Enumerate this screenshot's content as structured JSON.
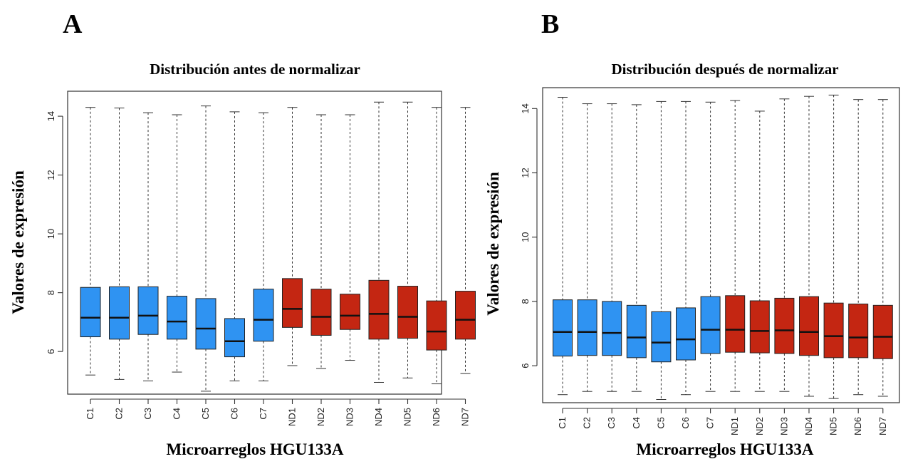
{
  "colors": {
    "control": "#2f93f2",
    "nd": "#c42612"
  },
  "chart_data": [
    {
      "type": "box",
      "panel_label": "A",
      "title": "Distribución antes de normalizar",
      "ylabel": "Valores de expresión",
      "xlabel": "Microarreglos HGU133A",
      "ylim": [
        4.55,
        14.85
      ],
      "yticks": [
        6,
        8,
        10,
        12,
        14
      ],
      "grid": false,
      "boxes": [
        {
          "label": "C1",
          "group": "control",
          "min": 5.2,
          "q1": 6.5,
          "median": 7.15,
          "q3": 8.18,
          "max": 14.3
        },
        {
          "label": "C2",
          "group": "control",
          "min": 5.05,
          "q1": 6.42,
          "median": 7.15,
          "q3": 8.2,
          "max": 14.28
        },
        {
          "label": "C3",
          "group": "control",
          "min": 5.0,
          "q1": 6.58,
          "median": 7.22,
          "q3": 8.2,
          "max": 14.12
        },
        {
          "label": "C4",
          "group": "control",
          "min": 5.3,
          "q1": 6.42,
          "median": 7.02,
          "q3": 7.88,
          "max": 14.05
        },
        {
          "label": "C5",
          "group": "control",
          "min": 4.65,
          "q1": 6.08,
          "median": 6.78,
          "q3": 7.8,
          "max": 14.35
        },
        {
          "label": "C6",
          "group": "control",
          "min": 5.0,
          "q1": 5.82,
          "median": 6.35,
          "q3": 7.12,
          "max": 14.15
        },
        {
          "label": "C7",
          "group": "control",
          "min": 5.0,
          "q1": 6.35,
          "median": 7.08,
          "q3": 8.12,
          "max": 14.12
        },
        {
          "label": "ND1",
          "group": "nd",
          "min": 5.52,
          "q1": 6.82,
          "median": 7.45,
          "q3": 8.48,
          "max": 14.3
        },
        {
          "label": "ND2",
          "group": "nd",
          "min": 5.42,
          "q1": 6.55,
          "median": 7.18,
          "q3": 8.12,
          "max": 14.05
        },
        {
          "label": "ND3",
          "group": "nd",
          "min": 5.7,
          "q1": 6.75,
          "median": 7.22,
          "q3": 7.95,
          "max": 14.05
        },
        {
          "label": "ND4",
          "group": "nd",
          "min": 4.95,
          "q1": 6.42,
          "median": 7.28,
          "q3": 8.42,
          "max": 14.48
        },
        {
          "label": "ND5",
          "group": "nd",
          "min": 5.1,
          "q1": 6.45,
          "median": 7.18,
          "q3": 8.22,
          "max": 14.48
        },
        {
          "label": "ND6",
          "group": "nd",
          "min": 4.9,
          "q1": 6.05,
          "median": 6.68,
          "q3": 7.72,
          "max": 14.3
        },
        {
          "label": "ND7",
          "group": "nd",
          "min": 5.25,
          "q1": 6.42,
          "median": 7.08,
          "q3": 8.05,
          "max": 14.3
        }
      ]
    },
    {
      "type": "box",
      "panel_label": "B",
      "title": "Distribución después de normalizar",
      "ylabel": "Valores de expresión",
      "xlabel": "Microarreglos HGU133A",
      "ylim": [
        4.85,
        14.65
      ],
      "yticks": [
        6,
        8,
        10,
        12,
        14
      ],
      "grid": false,
      "boxes": [
        {
          "label": "C1",
          "group": "control",
          "min": 5.1,
          "q1": 6.3,
          "median": 7.05,
          "q3": 8.05,
          "max": 14.35
        },
        {
          "label": "C2",
          "group": "control",
          "min": 5.2,
          "q1": 6.32,
          "median": 7.05,
          "q3": 8.05,
          "max": 14.15
        },
        {
          "label": "C3",
          "group": "control",
          "min": 5.2,
          "q1": 6.32,
          "median": 7.02,
          "q3": 8.0,
          "max": 14.15
        },
        {
          "label": "C4",
          "group": "control",
          "min": 5.2,
          "q1": 6.25,
          "median": 6.88,
          "q3": 7.88,
          "max": 14.12
        },
        {
          "label": "C5",
          "group": "control",
          "min": 4.95,
          "q1": 6.12,
          "median": 6.72,
          "q3": 7.68,
          "max": 14.22
        },
        {
          "label": "C6",
          "group": "control",
          "min": 5.1,
          "q1": 6.18,
          "median": 6.82,
          "q3": 7.8,
          "max": 14.22
        },
        {
          "label": "C7",
          "group": "control",
          "min": 5.2,
          "q1": 6.38,
          "median": 7.12,
          "q3": 8.15,
          "max": 14.2
        },
        {
          "label": "ND1",
          "group": "nd",
          "min": 5.2,
          "q1": 6.42,
          "median": 7.12,
          "q3": 8.18,
          "max": 14.25
        },
        {
          "label": "ND2",
          "group": "nd",
          "min": 5.2,
          "q1": 6.4,
          "median": 7.08,
          "q3": 8.02,
          "max": 13.92
        },
        {
          "label": "ND3",
          "group": "nd",
          "min": 5.2,
          "q1": 6.38,
          "median": 7.1,
          "q3": 8.1,
          "max": 14.3
        },
        {
          "label": "ND4",
          "group": "nd",
          "min": 5.05,
          "q1": 6.32,
          "median": 7.05,
          "q3": 8.15,
          "max": 14.38
        },
        {
          "label": "ND5",
          "group": "nd",
          "min": 4.98,
          "q1": 6.25,
          "median": 6.92,
          "q3": 7.95,
          "max": 14.42
        },
        {
          "label": "ND6",
          "group": "nd",
          "min": 5.1,
          "q1": 6.25,
          "median": 6.88,
          "q3": 7.92,
          "max": 14.28
        },
        {
          "label": "ND7",
          "group": "nd",
          "min": 5.05,
          "q1": 6.22,
          "median": 6.9,
          "q3": 7.88,
          "max": 14.28
        }
      ]
    }
  ]
}
